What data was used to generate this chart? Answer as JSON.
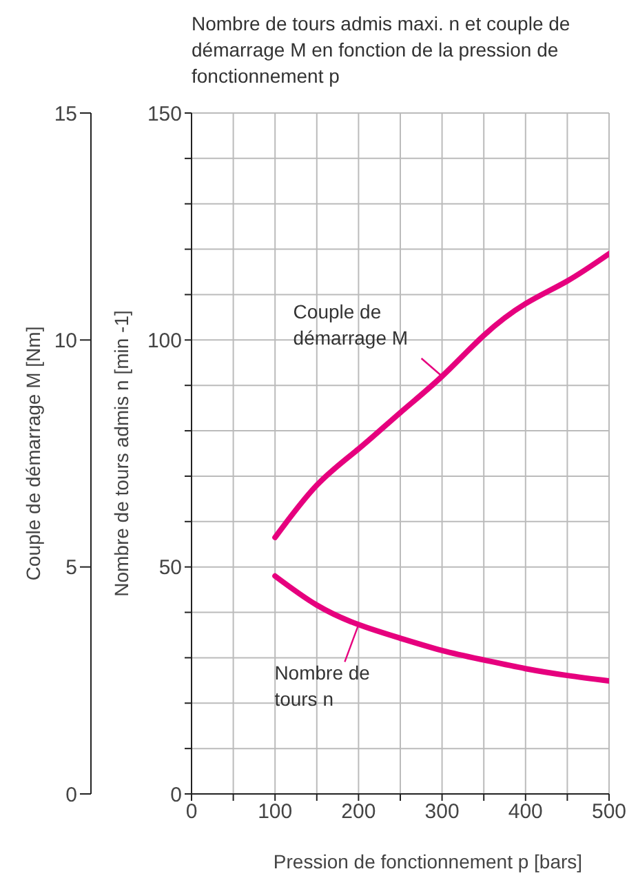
{
  "chart_data": {
    "type": "line",
    "title": "Nombre de tours admis maxi. n et couple de démarrage M en fonction de la pression de fonctionnement p",
    "xlabel": "Pression de fonctionnement p [bars]",
    "ylabel": "Nombre de tours admis n [min -1]",
    "y2label": "Couple de démarrage M [Nm]",
    "x": [
      100,
      150,
      200,
      250,
      300,
      350,
      400,
      450,
      500
    ],
    "series": [
      {
        "color": "#e6007e",
        "axis": "y2",
        "values": [
          5.65,
          6.8,
          7.6,
          8.4,
          9.2,
          10.1,
          10.8,
          11.3,
          11.9
        ]
      },
      {
        "color": "#e6007e",
        "values": [
          48,
          41.6,
          37.3,
          34.3,
          31.6,
          29.5,
          27.6,
          26.1,
          24.9
        ]
      }
    ],
    "annotations": [
      "Couple de démarrage M",
      "Nombre de tours n"
    ],
    "xlim": [
      0,
      500
    ],
    "xticks": [
      0,
      {
        "value": 50,
        "label": null
      },
      100,
      {
        "value": 150,
        "label": null
      },
      200,
      {
        "value": 250,
        "label": null
      },
      300,
      {
        "value": 350,
        "label": null
      },
      400,
      {
        "value": 450,
        "label": null
      },
      500
    ],
    "ylim": [
      0,
      150
    ],
    "yticks": [
      0,
      {
        "value": 10,
        "label": null
      },
      {
        "value": 20,
        "label": null
      },
      {
        "value": 30,
        "label": null
      },
      {
        "value": 40,
        "label": null
      },
      50,
      {
        "value": 60,
        "label": null
      },
      {
        "value": 70,
        "label": null
      },
      {
        "value": 80,
        "label": null
      },
      {
        "value": 90,
        "label": null
      },
      100,
      {
        "value": 110,
        "label": null
      },
      {
        "value": 120,
        "label": null
      },
      {
        "value": 130,
        "label": null
      },
      {
        "value": 140,
        "label": null
      },
      150
    ],
    "y2lim": [
      0,
      15
    ],
    "y2ticks": [
      0,
      5,
      10,
      15
    ],
    "grid": true
  }
}
